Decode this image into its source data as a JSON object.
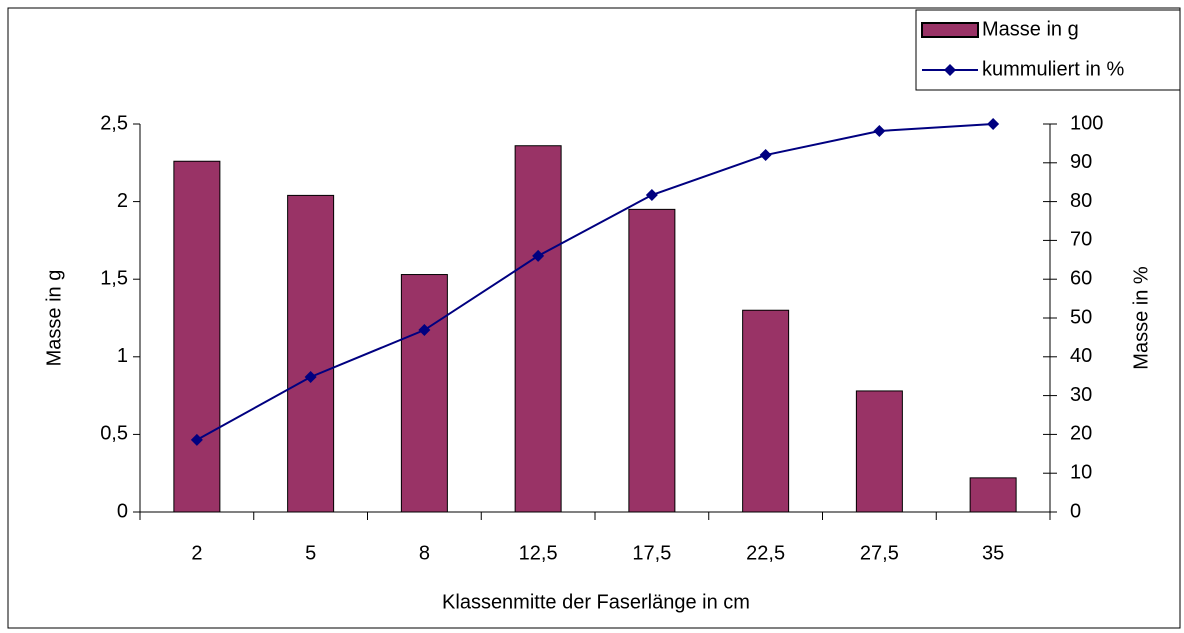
{
  "chart_data": {
    "type": "bar",
    "categories": [
      "2",
      "5",
      "8",
      "12,5",
      "17,5",
      "22,5",
      "27,5",
      "35"
    ],
    "series": [
      {
        "name": "Masse in g",
        "type": "bar",
        "color": "#993366",
        "values": [
          2.26,
          2.04,
          1.53,
          2.36,
          1.95,
          1.3,
          0.78,
          0.22
        ]
      },
      {
        "name": "kummuliert in %",
        "type": "line",
        "axis": "y2",
        "color": "#000080",
        "values": [
          18.6,
          34.8,
          46.9,
          66,
          81.7,
          92,
          98.2,
          100
        ]
      }
    ],
    "xlabel": "Klassenmitte der Faserlänge in cm",
    "ylabel": "Masse in g",
    "y2label": "Masse in %",
    "ylim": [
      0,
      2.5
    ],
    "yticks": [
      0,
      {
        "value": 0.5,
        "label": "0,5"
      },
      1,
      {
        "value": 1.5,
        "label": "1,5"
      },
      2,
      {
        "value": 2.5,
        "label": "2,5"
      }
    ],
    "y2lim": [
      0,
      100
    ],
    "y2ticks": [
      0,
      10,
      20,
      30,
      40,
      50,
      60,
      70,
      80,
      90,
      100
    ],
    "legend": "upper right",
    "grid": false
  }
}
